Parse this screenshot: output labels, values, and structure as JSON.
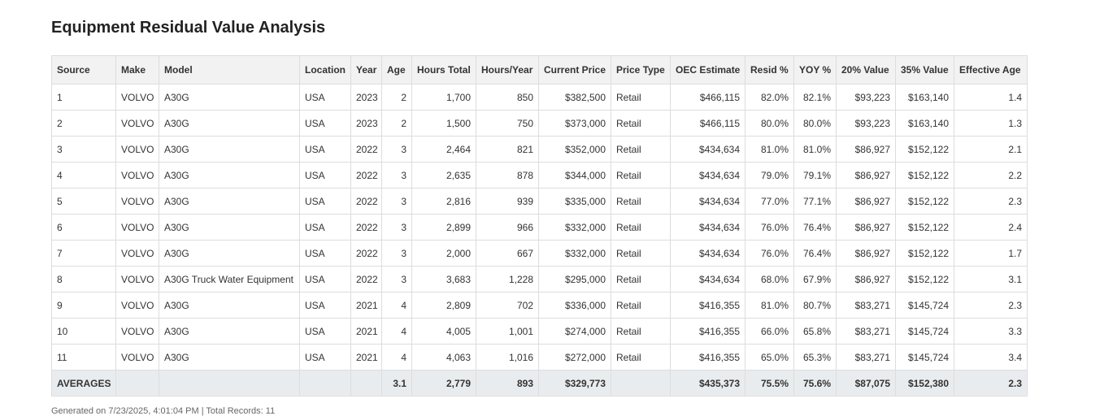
{
  "title": "Equipment Residual Value Analysis",
  "columns": [
    "Source",
    "Make",
    "Model",
    "Location",
    "Year",
    "Age",
    "Hours Total",
    "Hours/Year",
    "Current Price",
    "Price Type",
    "OEC Estimate",
    "Resid %",
    "YOY %",
    "20% Value",
    "35% Value",
    "Effective Age"
  ],
  "rows": [
    [
      "1",
      "VOLVO",
      "A30G",
      "USA",
      "2023",
      "2",
      "1,700",
      "850",
      "$382,500",
      "Retail",
      "$466,115",
      "82.0%",
      "82.1%",
      "$93,223",
      "$163,140",
      "1.4"
    ],
    [
      "2",
      "VOLVO",
      "A30G",
      "USA",
      "2023",
      "2",
      "1,500",
      "750",
      "$373,000",
      "Retail",
      "$466,115",
      "80.0%",
      "80.0%",
      "$93,223",
      "$163,140",
      "1.3"
    ],
    [
      "3",
      "VOLVO",
      "A30G",
      "USA",
      "2022",
      "3",
      "2,464",
      "821",
      "$352,000",
      "Retail",
      "$434,634",
      "81.0%",
      "81.0%",
      "$86,927",
      "$152,122",
      "2.1"
    ],
    [
      "4",
      "VOLVO",
      "A30G",
      "USA",
      "2022",
      "3",
      "2,635",
      "878",
      "$344,000",
      "Retail",
      "$434,634",
      "79.0%",
      "79.1%",
      "$86,927",
      "$152,122",
      "2.2"
    ],
    [
      "5",
      "VOLVO",
      "A30G",
      "USA",
      "2022",
      "3",
      "2,816",
      "939",
      "$335,000",
      "Retail",
      "$434,634",
      "77.0%",
      "77.1%",
      "$86,927",
      "$152,122",
      "2.3"
    ],
    [
      "6",
      "VOLVO",
      "A30G",
      "USA",
      "2022",
      "3",
      "2,899",
      "966",
      "$332,000",
      "Retail",
      "$434,634",
      "76.0%",
      "76.4%",
      "$86,927",
      "$152,122",
      "2.4"
    ],
    [
      "7",
      "VOLVO",
      "A30G",
      "USA",
      "2022",
      "3",
      "2,000",
      "667",
      "$332,000",
      "Retail",
      "$434,634",
      "76.0%",
      "76.4%",
      "$86,927",
      "$152,122",
      "1.7"
    ],
    [
      "8",
      "VOLVO",
      "A30G Truck Water Equipment",
      "USA",
      "2022",
      "3",
      "3,683",
      "1,228",
      "$295,000",
      "Retail",
      "$434,634",
      "68.0%",
      "67.9%",
      "$86,927",
      "$152,122",
      "3.1"
    ],
    [
      "9",
      "VOLVO",
      "A30G",
      "USA",
      "2021",
      "4",
      "2,809",
      "702",
      "$336,000",
      "Retail",
      "$416,355",
      "81.0%",
      "80.7%",
      "$83,271",
      "$145,724",
      "2.3"
    ],
    [
      "10",
      "VOLVO",
      "A30G",
      "USA",
      "2021",
      "4",
      "4,005",
      "1,001",
      "$274,000",
      "Retail",
      "$416,355",
      "66.0%",
      "65.8%",
      "$83,271",
      "$145,724",
      "3.3"
    ],
    [
      "11",
      "VOLVO",
      "A30G",
      "USA",
      "2021",
      "4",
      "4,063",
      "1,016",
      "$272,000",
      "Retail",
      "$416,355",
      "65.0%",
      "65.3%",
      "$83,271",
      "$145,724",
      "3.4"
    ]
  ],
  "averages": [
    "AVERAGES",
    "",
    "",
    "",
    "",
    "3.1",
    "2,779",
    "893",
    "$329,773",
    "",
    "$435,373",
    "75.5%",
    "75.6%",
    "$87,075",
    "$152,380",
    "2.3"
  ],
  "footer": "Generated on 7/23/2025, 4:01:04 PM | Total Records: 11"
}
